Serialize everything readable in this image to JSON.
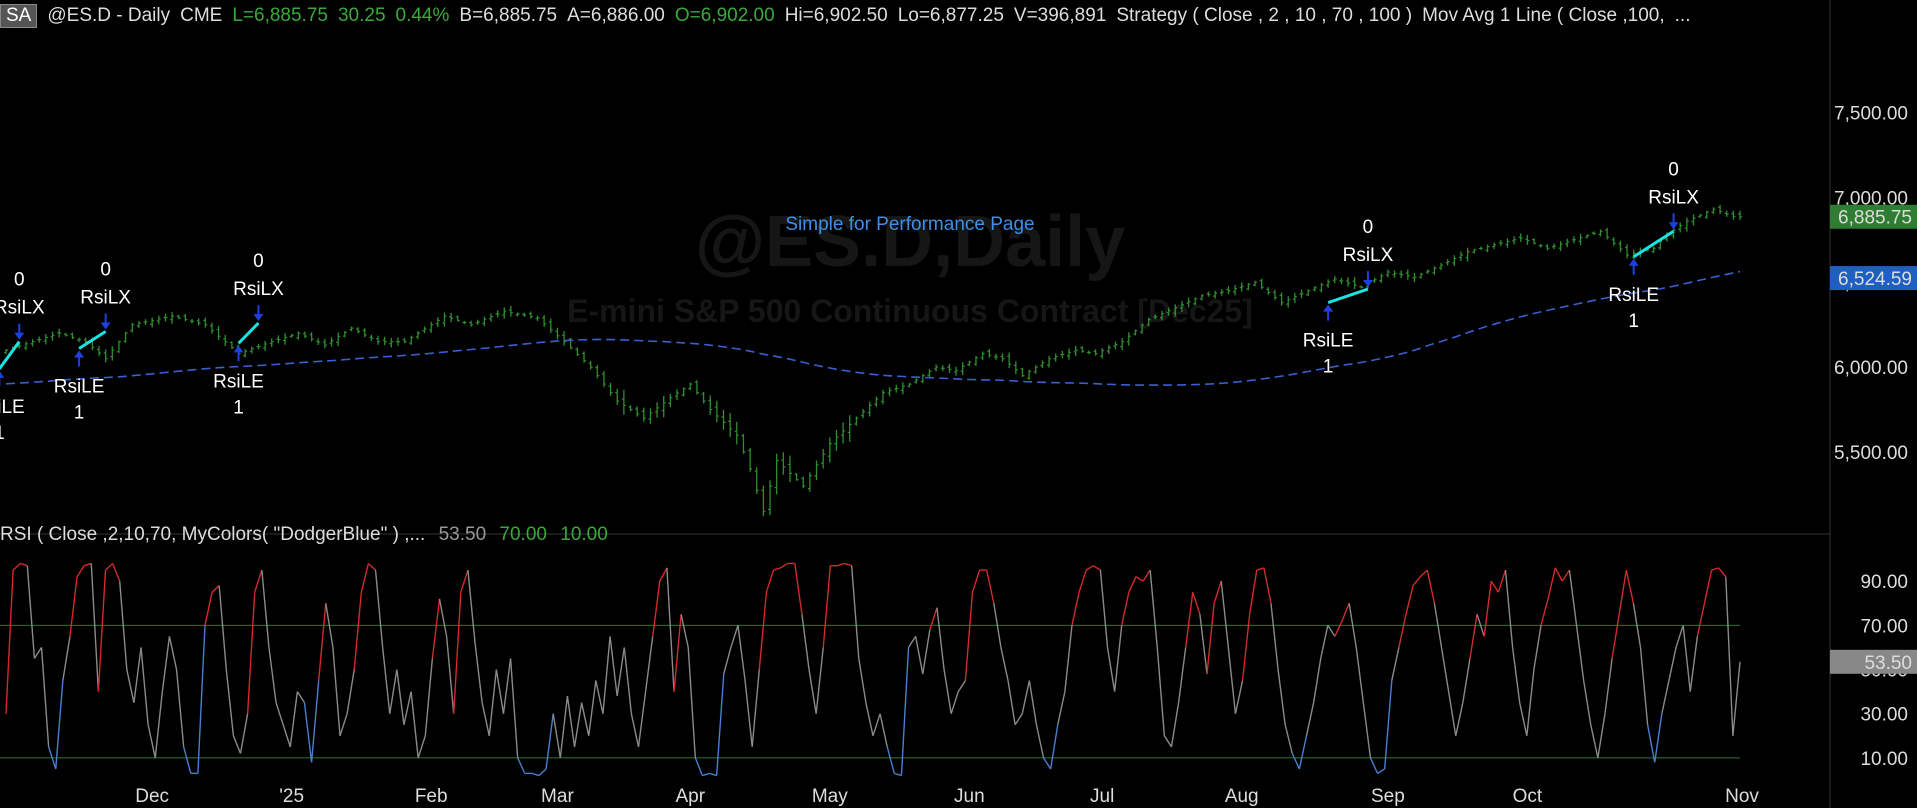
{
  "header": {
    "tag": "SA",
    "symbol": "@ES.D - Daily",
    "exchange": "CME",
    "last": "L=6,885.75",
    "change": "30.25",
    "pct": "0.44%",
    "bid": "B=6,885.75",
    "ask": "A=6,886.00",
    "open": "O=6,902.00",
    "high": "Hi=6,902.50",
    "low": "Lo=6,877.25",
    "volume": "V=396,891",
    "strategy": "Strategy ( Close , 2 , 10 , 70 , 100 )",
    "mov_avg": "Mov Avg 1 Line (     Close ,100,",
    "ellipsis": "..."
  },
  "watermark": {
    "line1": "@ES.D,Daily",
    "line2": "E-mini S&P 500 Continuous Contract [Dec25]"
  },
  "strategy_label": "Simple for Performance Page",
  "rsi_header": {
    "label": "RSI ( Close ,2,10,70, MyColors( \"DodgerBlue\" ) ,...",
    "value": "53.50",
    "overbought": "70.00",
    "oversold": "10.00"
  },
  "colors": {
    "bars": "#2f8f2f",
    "ma": "#3a5fcf",
    "rsi_neutral": "#8a8a8a",
    "rsi_high": "#d22a2a",
    "rsi_low": "#4a7fd0",
    "trade_line": "#19e3e3",
    "arrow": "#1f3fe0",
    "last_badge": "#2e7d32",
    "ma_badge": "#1e5fc0"
  },
  "chart_data": [
    {
      "type": "ohlc",
      "ylim": [
        5100,
        7950
      ],
      "y_ticks": [
        "7,500.00",
        "7,000.00",
        "6,500.00",
        "6,000.00",
        "5,500.00"
      ],
      "y_tick_values": [
        7500,
        7000,
        6500,
        6000,
        5500
      ],
      "x_tick_labels": [
        "Dec",
        "'25",
        "Feb",
        "Mar",
        "Apr",
        "May",
        "Jun",
        "Jul",
        "Aug",
        "Sep",
        "Oct",
        "Nov"
      ],
      "last_value": "6,885.75",
      "ma_value": "6,524.59",
      "ma_period": 100,
      "close_anchors": [
        [
          0,
          6100
        ],
        [
          8,
          6200
        ],
        [
          12,
          6150
        ],
        [
          15,
          6050
        ],
        [
          19,
          6250
        ],
        [
          25,
          6300
        ],
        [
          30,
          6250
        ],
        [
          35,
          6080
        ],
        [
          40,
          6150
        ],
        [
          44,
          6200
        ],
        [
          48,
          6130
        ],
        [
          52,
          6230
        ],
        [
          56,
          6150
        ],
        [
          60,
          6150
        ],
        [
          66,
          6300
        ],
        [
          70,
          6250
        ],
        [
          75,
          6330
        ],
        [
          80,
          6290
        ],
        [
          84,
          6150
        ],
        [
          88,
          6000
        ],
        [
          92,
          5800
        ],
        [
          96,
          5700
        ],
        [
          100,
          5820
        ],
        [
          103,
          5900
        ],
        [
          106,
          5750
        ],
        [
          110,
          5600
        ],
        [
          112,
          5400
        ],
        [
          114,
          5150
        ],
        [
          116,
          5450
        ],
        [
          120,
          5300
        ],
        [
          124,
          5550
        ],
        [
          128,
          5700
        ],
        [
          132,
          5850
        ],
        [
          136,
          5900
        ],
        [
          140,
          6000
        ],
        [
          143,
          5980
        ],
        [
          147,
          6080
        ],
        [
          150,
          6050
        ],
        [
          153,
          5950
        ],
        [
          157,
          6050
        ],
        [
          161,
          6100
        ],
        [
          164,
          6080
        ],
        [
          168,
          6150
        ],
        [
          172,
          6280
        ],
        [
          176,
          6350
        ],
        [
          180,
          6420
        ],
        [
          184,
          6450
        ],
        [
          188,
          6500
        ],
        [
          192,
          6380
        ],
        [
          196,
          6450
        ],
        [
          200,
          6520
        ],
        [
          204,
          6470
        ],
        [
          208,
          6560
        ],
        [
          212,
          6530
        ],
        [
          216,
          6600
        ],
        [
          220,
          6680
        ],
        [
          224,
          6720
        ],
        [
          228,
          6760
        ],
        [
          232,
          6700
        ],
        [
          236,
          6750
        ],
        [
          240,
          6800
        ],
        [
          244,
          6660
        ],
        [
          248,
          6700
        ],
        [
          250,
          6780
        ],
        [
          253,
          6860
        ],
        [
          257,
          6930
        ],
        [
          260,
          6886
        ]
      ],
      "trades": [
        {
          "type": "entry",
          "label": "RsiLE",
          "qty": "1",
          "bar": -1,
          "price": 5990
        },
        {
          "type": "exit",
          "label": "RsiLX",
          "qty": "0",
          "bar": 2,
          "price": 6150
        },
        {
          "type": "entry",
          "label": "RsiLE",
          "qty": "1",
          "bar": 11,
          "price": 6110
        },
        {
          "type": "exit",
          "label": "RsiLX",
          "qty": "0",
          "bar": 15,
          "price": 6210
        },
        {
          "type": "entry",
          "label": "RsiLE",
          "qty": "1",
          "bar": 35,
          "price": 6140
        },
        {
          "type": "exit",
          "label": "RsiLX",
          "qty": "0",
          "bar": 38,
          "price": 6260
        },
        {
          "type": "entry",
          "label": "RsiLE",
          "qty": "1",
          "bar": 199,
          "price": 6380
        },
        {
          "type": "exit",
          "label": "RsiLX",
          "qty": "0",
          "bar": 205,
          "price": 6460
        },
        {
          "type": "entry",
          "label": "RsiLE",
          "qty": "1",
          "bar": 245,
          "price": 6650
        },
        {
          "type": "exit",
          "label": "RsiLX",
          "qty": "0",
          "bar": 251,
          "price": 6800
        }
      ]
    },
    {
      "type": "line",
      "title": "RSI",
      "ylim": [
        0,
        105
      ],
      "y_ticks": [
        "90.00",
        "70.00",
        "50.00",
        "30.00",
        "10.00"
      ],
      "y_tick_values": [
        90,
        70,
        50,
        30,
        10
      ],
      "levels": [
        70,
        10
      ],
      "last_value": "53.50",
      "values": [
        30,
        95,
        98,
        97,
        55,
        60,
        15,
        5,
        45,
        65,
        92,
        97,
        98,
        40,
        95,
        98,
        90,
        50,
        35,
        60,
        25,
        10,
        40,
        65,
        50,
        15,
        3,
        3,
        70,
        85,
        88,
        50,
        20,
        12,
        30,
        85,
        95,
        60,
        35,
        25,
        15,
        40,
        35,
        8,
        45,
        80,
        60,
        20,
        30,
        50,
        85,
        98,
        95,
        60,
        30,
        50,
        25,
        40,
        10,
        20,
        55,
        82,
        65,
        30,
        85,
        95,
        62,
        35,
        20,
        50,
        30,
        55,
        10,
        3,
        3,
        2,
        5,
        30,
        10,
        38,
        15,
        35,
        20,
        45,
        30,
        65,
        38,
        60,
        30,
        15,
        40,
        65,
        90,
        96,
        40,
        75,
        60,
        10,
        2,
        3,
        2,
        48,
        60,
        70,
        45,
        15,
        50,
        85,
        95,
        96,
        98,
        98,
        75,
        50,
        30,
        60,
        97,
        97,
        98,
        97,
        55,
        35,
        20,
        30,
        15,
        3,
        2,
        60,
        65,
        48,
        68,
        78,
        50,
        30,
        40,
        45,
        85,
        95,
        95,
        80,
        60,
        45,
        25,
        30,
        45,
        25,
        10,
        5,
        25,
        40,
        70,
        85,
        95,
        97,
        95,
        60,
        40,
        70,
        85,
        92,
        90,
        95,
        60,
        20,
        15,
        35,
        60,
        85,
        75,
        48,
        80,
        90,
        60,
        30,
        45,
        75,
        95,
        96,
        80,
        50,
        25,
        12,
        5,
        20,
        35,
        55,
        70,
        65,
        72,
        80,
        60,
        35,
        10,
        3,
        5,
        45,
        60,
        75,
        88,
        92,
        95,
        80,
        60,
        40,
        20,
        35,
        55,
        75,
        65,
        90,
        85,
        95,
        60,
        35,
        20,
        50,
        70,
        82,
        96,
        90,
        95,
        70,
        45,
        25,
        10,
        30,
        55,
        75,
        95,
        80,
        60,
        25,
        8,
        30,
        45,
        60,
        70,
        40,
        65,
        80,
        95,
        96,
        92,
        20,
        53.5
      ]
    }
  ]
}
